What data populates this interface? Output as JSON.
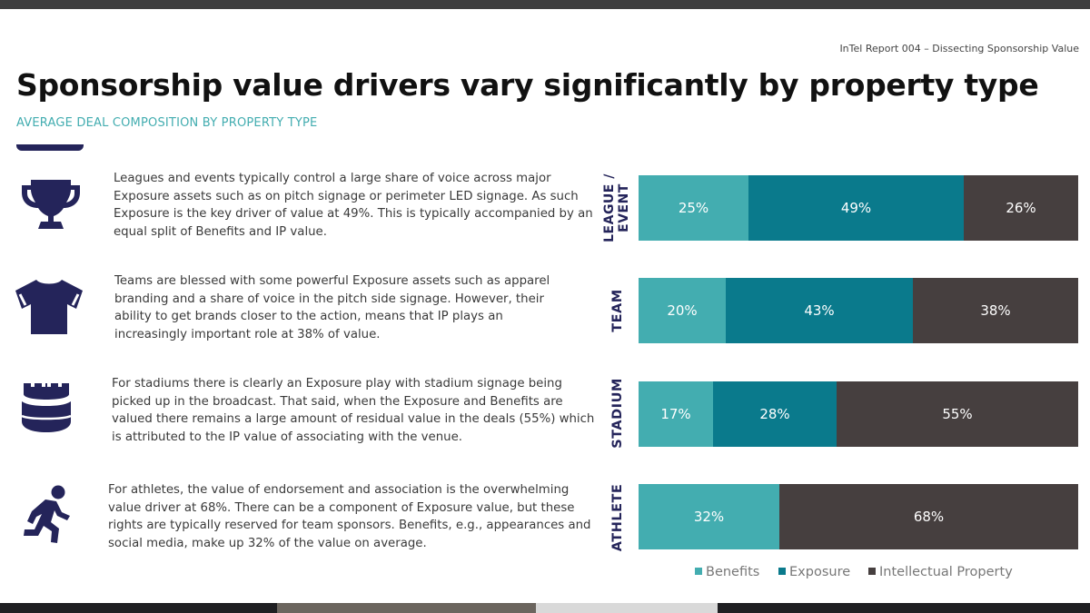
{
  "header": {
    "report_ref": "InTel Report 004 – Dissecting Sponsorship Value",
    "title": "Sponsorship value drivers vary significantly by property type",
    "subtitle": "AVERAGE DEAL COMPOSITION BY PROPERTY TYPE"
  },
  "rows": [
    {
      "icon": "trophy-icon",
      "label": "LEAGUE / EVENT",
      "description": "Leagues and events typically control a large share of voice across major Exposure assets such as on pitch signage or perimeter LED signage. As such Exposure is the key driver of value at 49%. This is typically accompanied by an equal split of Benefits and IP value."
    },
    {
      "icon": "jersey-icon",
      "label": "TEAM",
      "description": "Teams are blessed with some powerful Exposure assets such as apparel branding and a share of voice in the pitch side signage. However, their ability to get brands closer to the action, means that IP plays an increasingly important role at 38% of value."
    },
    {
      "icon": "stadium-icon",
      "label": "STADIUM",
      "description": "For stadiums there is clearly an Exposure play with stadium signage being picked up in the broadcast. That said, when the Exposure and Benefits are valued there remains a large amount of residual value in the deals (55%) which is attributed to the IP value of associating with the venue."
    },
    {
      "icon": "runner-icon",
      "label": "ATHLETE",
      "description": "For athletes, the value of endorsement and association is the overwhelming value driver at 68%. There can be a component of Exposure value, but these rights are typically reserved for team sponsors. Benefits, e.g., appearances and social media, make up 32% of the value on average."
    }
  ],
  "chart_data": {
    "type": "bar",
    "orientation": "horizontal",
    "stacked": true,
    "title": "AVERAGE DEAL COMPOSITION BY PROPERTY TYPE",
    "categories": [
      "LEAGUE / EVENT",
      "TEAM",
      "STADIUM",
      "ATHLETE"
    ],
    "series": [
      {
        "name": "Benefits",
        "color": "#43adb0",
        "values": [
          25,
          20,
          17,
          32
        ],
        "labels": [
          "25%",
          "20%",
          "17%",
          "32%"
        ]
      },
      {
        "name": "Exposure",
        "color": "#0a7a8c",
        "values": [
          49,
          43,
          28,
          0
        ],
        "labels": [
          "49%",
          "43%",
          "28%",
          ""
        ]
      },
      {
        "name": "Intellectual Property",
        "color": "#463f3f",
        "values": [
          26,
          38,
          55,
          68
        ],
        "labels": [
          "26%",
          "38%",
          "55%",
          "68%"
        ]
      }
    ],
    "xlim": [
      0,
      100
    ],
    "unit": "%",
    "legend": "bottom"
  }
}
